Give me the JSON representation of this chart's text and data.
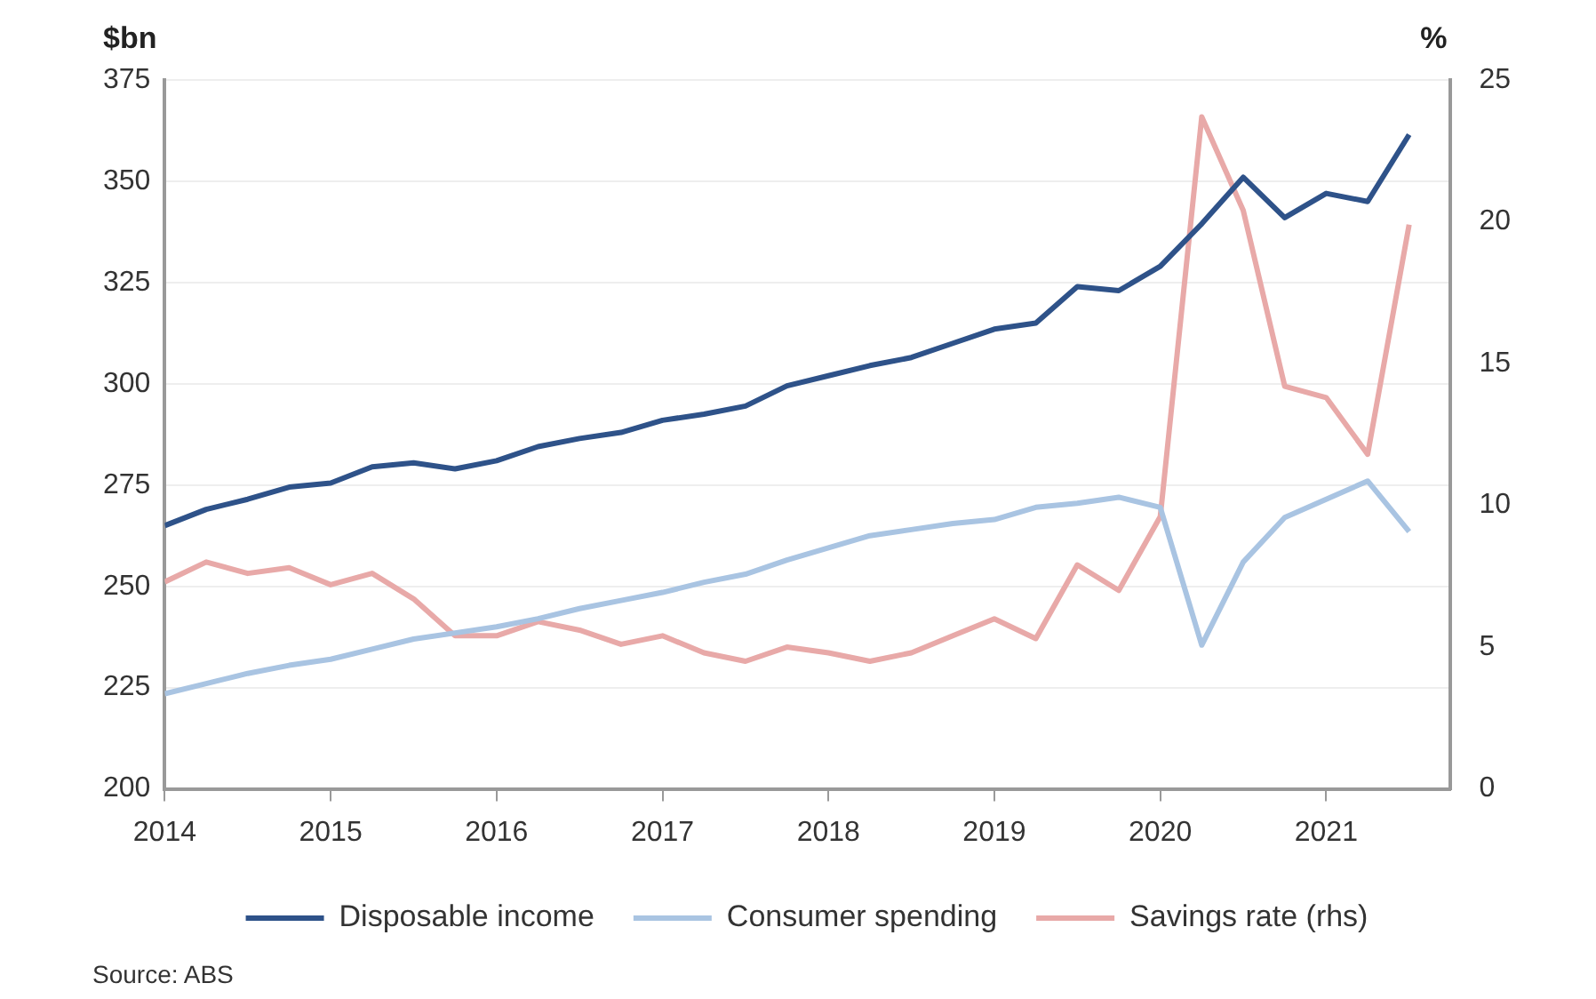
{
  "chart_data": {
    "type": "line",
    "ylabel": "$bn",
    "y2label": "%",
    "x": [
      2014,
      2014.25,
      2014.5,
      2014.75,
      2015,
      2015.25,
      2015.5,
      2015.75,
      2016,
      2016.25,
      2016.5,
      2016.75,
      2017,
      2017.25,
      2017.5,
      2017.75,
      2018,
      2018.25,
      2018.5,
      2018.75,
      2019,
      2019.25,
      2019.5,
      2019.75,
      2020,
      2020.25,
      2020.5,
      2020.75,
      2021,
      2021.25,
      2021.5
    ],
    "xlim": [
      2014,
      2021.75
    ],
    "xticks": [
      2014,
      2015,
      2016,
      2017,
      2018,
      2019,
      2020,
      2021
    ],
    "ylim": [
      200,
      375
    ],
    "yticks": [
      200,
      225,
      250,
      275,
      300,
      325,
      350,
      375
    ],
    "y2lim": [
      0,
      25
    ],
    "y2ticks": [
      0,
      5,
      10,
      15,
      20,
      25
    ],
    "grid": "y",
    "legend": "bottom",
    "marker": "none",
    "line_style": "solid",
    "annotations": [
      "Source: ABS"
    ],
    "series": [
      {
        "name": "Disposable income",
        "color": "#2e5289",
        "values": [
          265,
          269,
          271.5,
          274.5,
          275.5,
          279.5,
          280.5,
          279,
          281,
          284.5,
          286.5,
          288,
          291,
          292.5,
          294.5,
          299.5,
          302,
          304.5,
          306.5,
          310,
          313.5,
          315,
          324,
          323,
          329,
          339.5,
          351,
          341,
          347,
          345,
          361.5
        ]
      },
      {
        "name": "Consumer spending",
        "color": "#a9c4e2",
        "values": [
          223.5,
          226,
          228.5,
          230.5,
          232,
          234.5,
          237,
          238.5,
          240,
          242,
          244.5,
          246.5,
          248.5,
          251,
          253,
          256.5,
          259.5,
          262.5,
          264,
          265.5,
          266.5,
          269.5,
          270.5,
          272,
          269.5,
          235.5,
          256,
          267,
          271.5,
          276,
          263.5
        ]
      },
      {
        "name": "Savings rate (rhs)",
        "color": "#e8a9a8",
        "axis": "y2",
        "values": [
          7.3,
          8.0,
          7.6,
          7.8,
          7.2,
          7.6,
          6.7,
          5.4,
          5.4,
          5.9,
          5.6,
          5.1,
          5.4,
          4.8,
          4.5,
          5.0,
          4.8,
          4.5,
          4.8,
          5.4,
          6.0,
          5.3,
          7.9,
          7.0,
          9.6,
          23.7,
          20.4,
          14.2,
          13.8,
          11.8,
          19.9
        ]
      }
    ]
  }
}
